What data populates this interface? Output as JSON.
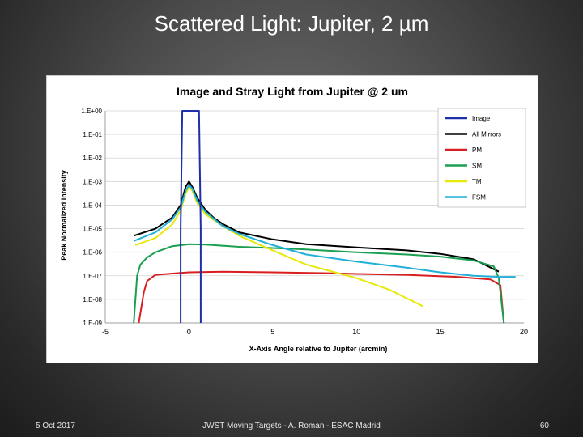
{
  "slide": {
    "title": "Scattered Light: Jupiter, 2 µm",
    "footer_date": "5 Oct 2017",
    "footer_center": "JWST  Moving Targets - A. Roman - ESAC Madrid",
    "page_number": "60"
  },
  "chart_data": {
    "type": "line",
    "title": "Image and Stray Light from Jupiter @ 2 um",
    "xlabel": "X-Axis Angle relative to Jupiter (arcmin)",
    "ylabel": "Peak Normalized Intensity",
    "xlim": [
      -5,
      20
    ],
    "ylim_log10": [
      -9,
      0
    ],
    "y_scale": "log",
    "x_ticks": [
      "-5",
      "0",
      "5",
      "10",
      "15",
      "20"
    ],
    "y_ticks": [
      "1.E+00",
      "1.E-01",
      "1.E-02",
      "1.E-03",
      "1.E-04",
      "1.E-05",
      "1.E-06",
      "1.E-07",
      "1.E-08",
      "1.E-09"
    ],
    "grid": "horizontal",
    "legend_position": "top-right",
    "series": [
      {
        "name": "Image",
        "color": "#1f2fa8",
        "x": [
          -0.5,
          -0.5,
          -0.4,
          0.6,
          0.7,
          0.7
        ],
        "y": [
          1e-09,
          1e-05,
          1.0,
          1.0,
          1e-05,
          1e-09
        ]
      },
      {
        "name": "All Mirrors",
        "color": "#000000",
        "x": [
          -3.3,
          -2,
          -1,
          -0.5,
          -0.2,
          0,
          0.2,
          0.5,
          1,
          1.5,
          2,
          3,
          5,
          7,
          10,
          13,
          15,
          17,
          18.5
        ],
        "y": [
          5e-06,
          1e-05,
          3e-05,
          0.0001,
          0.0006,
          0.001,
          0.0006,
          0.0002,
          6e-05,
          2.8e-05,
          1.6e-05,
          7e-06,
          3.5e-06,
          2.2e-06,
          1.6e-06,
          1.2e-06,
          8.5e-07,
          5e-07,
          1.5e-07
        ]
      },
      {
        "name": "PM",
        "color": "#d81e1e",
        "x": [
          -3,
          -2.7,
          -2.5,
          -2,
          0,
          2,
          5,
          8,
          10,
          13,
          16,
          18,
          18.6,
          18.8
        ],
        "y": [
          1e-09,
          2e-08,
          6e-08,
          1.1e-07,
          1.4e-07,
          1.5e-07,
          1.4e-07,
          1.3e-07,
          1.2e-07,
          1.1e-07,
          9e-08,
          7e-08,
          4e-08,
          1e-09
        ]
      },
      {
        "name": "SM",
        "color": "#18a050",
        "x": [
          -3.3,
          -3.1,
          -2.9,
          -2.5,
          -2,
          -1,
          0,
          1,
          2,
          3,
          5,
          7,
          10,
          13,
          15,
          17,
          18.2,
          18.5,
          18.8
        ],
        "y": [
          1e-09,
          1e-07,
          3e-07,
          6e-07,
          1e-06,
          1.8e-06,
          2.2e-06,
          2.1e-06,
          1.9e-06,
          1.7e-06,
          1.5e-06,
          1.3e-06,
          1e-06,
          8e-07,
          6.5e-07,
          4.5e-07,
          2.5e-07,
          8e-08,
          1e-09
        ]
      },
      {
        "name": "TM",
        "color": "#e8e80a",
        "x": [
          -3.2,
          -2,
          -1,
          -0.5,
          -0.2,
          0,
          0.2,
          0.5,
          1,
          2,
          3,
          5,
          7,
          10,
          12,
          14
        ],
        "y": [
          2e-06,
          4e-06,
          1.5e-05,
          6e-05,
          0.0003,
          0.0006,
          0.0004,
          0.00012,
          4e-05,
          1.3e-05,
          5e-06,
          1.2e-06,
          3e-07,
          8e-08,
          2.5e-08,
          5e-09
        ]
      },
      {
        "name": "FSM",
        "color": "#20b0d8",
        "x": [
          -3.3,
          -2,
          -1,
          -0.5,
          -0.2,
          0,
          0.2,
          0.5,
          1,
          2,
          3,
          5,
          7,
          10,
          13,
          15,
          17,
          18.5,
          19.5
        ],
        "y": [
          3e-06,
          7e-06,
          2.5e-05,
          8e-05,
          0.0004,
          0.0007,
          0.0005,
          0.00015,
          5e-05,
          1.3e-05,
          6e-06,
          2e-06,
          8e-07,
          4e-07,
          2.2e-07,
          1.4e-07,
          1e-07,
          9e-08,
          9e-08
        ]
      }
    ]
  }
}
